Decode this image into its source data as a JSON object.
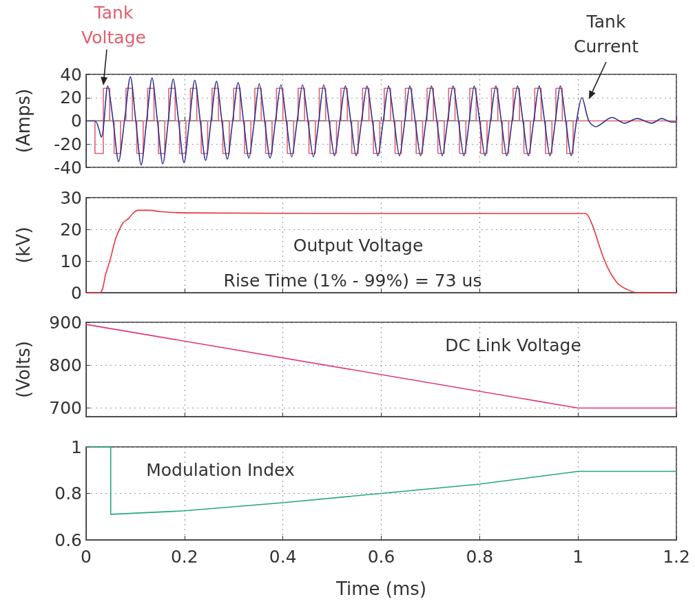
{
  "chart_data": [
    {
      "type": "line",
      "ylabel": "(Amps)",
      "xlim": [
        0,
        1.2
      ],
      "xticks": [
        0,
        0.2,
        0.4,
        0.6,
        0.8,
        1,
        1.2
      ],
      "ylim": [
        -40,
        40
      ],
      "yticks": [
        -40,
        -20,
        0,
        20,
        40
      ],
      "grid": true,
      "tick_labels": "y",
      "series": [
        {
          "name": "Tank Voltage",
          "type": "step",
          "color": "#e0606e",
          "x": [
            0,
            0.018,
            0.035,
            0.048,
            0.057,
            0.07,
            0.081,
            0.094,
            0.103,
            0.116,
            0.125,
            0.138,
            0.147,
            0.16,
            0.168,
            0.181,
            0.19,
            0.203,
            0.212,
            0.225,
            0.234,
            0.247,
            0.256,
            0.269,
            0.278,
            0.291,
            0.3,
            0.313,
            0.322,
            0.335,
            0.343,
            0.356,
            0.365,
            0.378,
            0.387,
            0.4,
            0.409,
            0.422,
            0.431,
            0.444,
            0.453,
            0.466,
            0.474,
            0.487,
            0.496,
            0.509,
            0.518,
            0.531,
            0.54,
            0.553,
            0.562,
            0.575,
            0.584,
            0.597,
            0.606,
            0.619,
            0.628,
            0.641,
            0.649,
            0.662,
            0.671,
            0.684,
            0.693,
            0.706,
            0.715,
            0.728,
            0.737,
            0.75,
            0.759,
            0.772,
            0.78,
            0.793,
            0.802,
            0.815,
            0.824,
            0.837,
            0.846,
            0.859,
            0.868,
            0.881,
            0.89,
            0.903,
            0.912,
            0.925,
            0.934,
            0.947,
            0.955,
            0.968,
            0.977,
            0.99,
            1.2
          ],
          "values": [
            0,
            -28,
            28,
            0,
            -28,
            0,
            28,
            0,
            -28,
            0,
            28,
            0,
            -28,
            0,
            28,
            0,
            -28,
            0,
            28,
            0,
            -28,
            0,
            28,
            0,
            -28,
            0,
            28,
            0,
            -28,
            0,
            28,
            0,
            -28,
            0,
            28,
            0,
            -28,
            0,
            28,
            0,
            -28,
            0,
            28,
            0,
            -28,
            0,
            28,
            0,
            -28,
            0,
            28,
            0,
            -28,
            0,
            28,
            0,
            -28,
            0,
            28,
            0,
            -28,
            0,
            28,
            0,
            -28,
            0,
            28,
            0,
            -28,
            0,
            28,
            0,
            -28,
            0,
            28,
            0,
            -28,
            0,
            28,
            0,
            -28,
            0,
            28,
            0,
            -28,
            0,
            28,
            0,
            -28,
            0,
            0
          ]
        },
        {
          "name": "Tank Current",
          "type": "line",
          "color": "#2b2f8f",
          "x": [
            0,
            0.018,
            0.031,
            0.044,
            0.055,
            0.066,
            0.078,
            0.09,
            0.101,
            0.112,
            0.123,
            0.134,
            0.145,
            0.156,
            0.167,
            0.177,
            0.188,
            0.199,
            0.21,
            0.221,
            0.232,
            0.243,
            0.254,
            0.265,
            0.276,
            0.287,
            0.298,
            0.309,
            0.32,
            0.331,
            0.342,
            0.352,
            0.363,
            0.374,
            0.385,
            0.396,
            0.407,
            0.418,
            0.429,
            0.44,
            0.451,
            0.462,
            0.473,
            0.483,
            0.494,
            0.505,
            0.516,
            0.527,
            0.538,
            0.549,
            0.56,
            0.571,
            0.582,
            0.593,
            0.604,
            0.615,
            0.626,
            0.637,
            0.648,
            0.658,
            0.669,
            0.68,
            0.691,
            0.702,
            0.713,
            0.724,
            0.735,
            0.746,
            0.757,
            0.768,
            0.779,
            0.789,
            0.8,
            0.811,
            0.822,
            0.833,
            0.844,
            0.855,
            0.866,
            0.877,
            0.888,
            0.899,
            0.91,
            0.921,
            0.932,
            0.943,
            0.954,
            0.964,
            0.975,
            0.986,
            0.997,
            1.008,
            1.022,
            1.036,
            1.069,
            1.095,
            1.12,
            1.15,
            1.17,
            1.19,
            1.2
          ],
          "values": [
            0,
            0,
            -14,
            30,
            0,
            -35,
            0,
            38,
            0,
            -38,
            0,
            37,
            0,
            -37,
            0,
            36,
            0,
            -36,
            0,
            35,
            0,
            -34,
            0,
            34,
            0,
            -33,
            0,
            33,
            0,
            -32,
            0,
            32,
            0,
            -32,
            0,
            31,
            0,
            -31,
            0,
            31,
            0,
            -31,
            0,
            31,
            0,
            -30,
            0,
            30,
            0,
            -30,
            0,
            30,
            0,
            -30,
            0,
            30,
            0,
            -30,
            0,
            30,
            0,
            -30,
            0,
            30,
            0,
            -30,
            0,
            30,
            0,
            -30,
            0,
            30,
            0,
            -30,
            0,
            30,
            0,
            -30,
            0,
            30,
            0,
            -30,
            0,
            30,
            0,
            -30,
            0,
            30,
            0,
            -30,
            0,
            20,
            0,
            -5,
            3,
            -2,
            2,
            -2,
            2,
            -1,
            -1
          ]
        }
      ]
    },
    {
      "type": "line",
      "ylabel": "(kV)",
      "xlim": [
        0,
        1.2
      ],
      "xticks": [
        0,
        0.2,
        0.4,
        0.6,
        0.8,
        1,
        1.2
      ],
      "ylim": [
        0,
        30
      ],
      "yticks": [
        0,
        10,
        20,
        30
      ],
      "grid": true,
      "tick_labels": "y",
      "annotations": [
        "Rise Time (1% - 99%) = 73 us"
      ],
      "series": [
        {
          "name": "Output Voltage",
          "color": "#e8333c",
          "x": [
            0,
            0.028,
            0.04,
            0.05,
            0.06,
            0.075,
            0.087,
            0.095,
            0.105,
            0.13,
            0.15,
            0.2,
            0.6,
            1.0,
            1.015,
            1.03,
            1.045,
            1.06,
            1.08,
            1.1,
            1.12,
            1.2
          ],
          "values": [
            0,
            0,
            6,
            11,
            17,
            22,
            23.5,
            25,
            26,
            26,
            25.6,
            25.2,
            25,
            25,
            25,
            21,
            14,
            8,
            3,
            1,
            0,
            0
          ]
        }
      ]
    },
    {
      "type": "line",
      "ylabel": "(Volts)",
      "xlim": [
        0,
        1.2
      ],
      "xticks": [
        0,
        0.2,
        0.4,
        0.6,
        0.8,
        1,
        1.2
      ],
      "ylim": [
        680,
        900
      ],
      "yticks": [
        700,
        800,
        900
      ],
      "grid": true,
      "tick_labels": "y",
      "series": [
        {
          "name": "DC Link Voltage",
          "color": "#e0357c",
          "x": [
            0,
            1.0,
            1.2
          ],
          "values": [
            895,
            700,
            700
          ]
        }
      ]
    },
    {
      "type": "line",
      "xlabel": "Time (ms)",
      "xlim": [
        0,
        1.2
      ],
      "xticks": [
        0,
        0.2,
        0.4,
        0.6,
        0.8,
        1,
        1.2
      ],
      "ylim": [
        0.6,
        1
      ],
      "yticks": [
        0.6,
        0.8,
        1
      ],
      "grid": true,
      "series": [
        {
          "name": "Modulation Index",
          "color": "#22a878",
          "x": [
            0,
            0.05,
            0.05,
            0.2,
            0.4,
            0.6,
            0.8,
            1.0,
            1.2
          ],
          "values": [
            1,
            1,
            0.71,
            0.725,
            0.76,
            0.8,
            0.84,
            0.895,
            0.895
          ]
        }
      ]
    }
  ]
}
